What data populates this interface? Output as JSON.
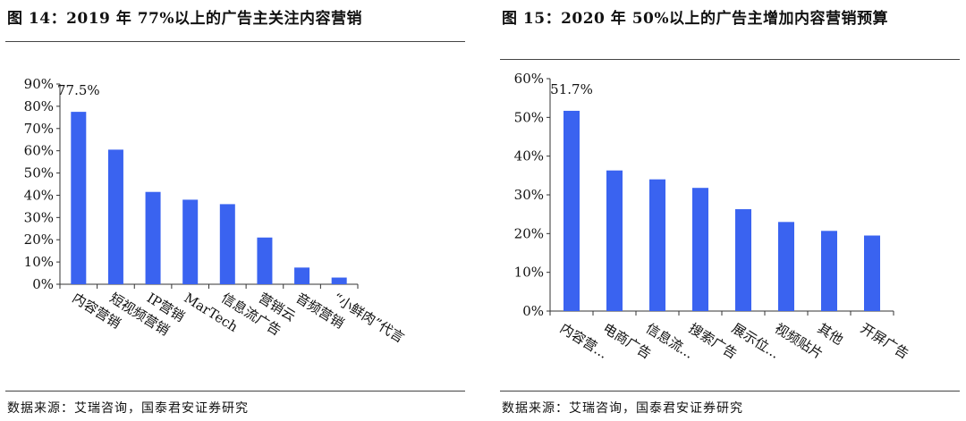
{
  "charts": [
    {
      "title": "图 14：2019 年 77%以上的广告主关注内容营销",
      "source": "数据来源：艾瑞咨询，国泰君安证券研究",
      "chart_data": {
        "type": "bar",
        "categories": [
          "内容营销",
          "短视频营销",
          "IP营销",
          "MarTech",
          "信息流广告",
          "营销云",
          "音频营销",
          "“小鲜肉”代言"
        ],
        "values": [
          77.5,
          60.5,
          41.5,
          38.0,
          36.0,
          21.0,
          7.5,
          3.0
        ],
        "value_labels": [
          {
            "index": 0,
            "text": "77.5%"
          }
        ],
        "y_ticks": [
          "0%",
          "10%",
          "20%",
          "30%",
          "40%",
          "50%",
          "60%",
          "70%",
          "80%",
          "90%"
        ],
        "ylim": [
          0,
          90
        ],
        "bar_color": "#3a63f0",
        "grid": false,
        "legend": "none"
      }
    },
    {
      "title": "图 15：2020 年 50%以上的广告主增加内容营销预算",
      "source": "数据来源：艾瑞咨询，国泰君安证券研究",
      "chart_data": {
        "type": "bar",
        "categories": [
          "内容营...",
          "电商广告",
          "信息流...",
          "搜索广告",
          "展示位...",
          "视频贴片",
          "其他",
          "开屏广告"
        ],
        "values": [
          51.7,
          36.3,
          34.0,
          31.8,
          26.3,
          23.0,
          20.7,
          19.5
        ],
        "value_labels": [
          {
            "index": 0,
            "text": "51.7%"
          }
        ],
        "y_ticks": [
          "0%",
          "10%",
          "20%",
          "30%",
          "40%",
          "50%",
          "60%"
        ],
        "ylim": [
          0,
          60
        ],
        "bar_color": "#3a63f0",
        "grid": false,
        "legend": "none"
      }
    }
  ]
}
